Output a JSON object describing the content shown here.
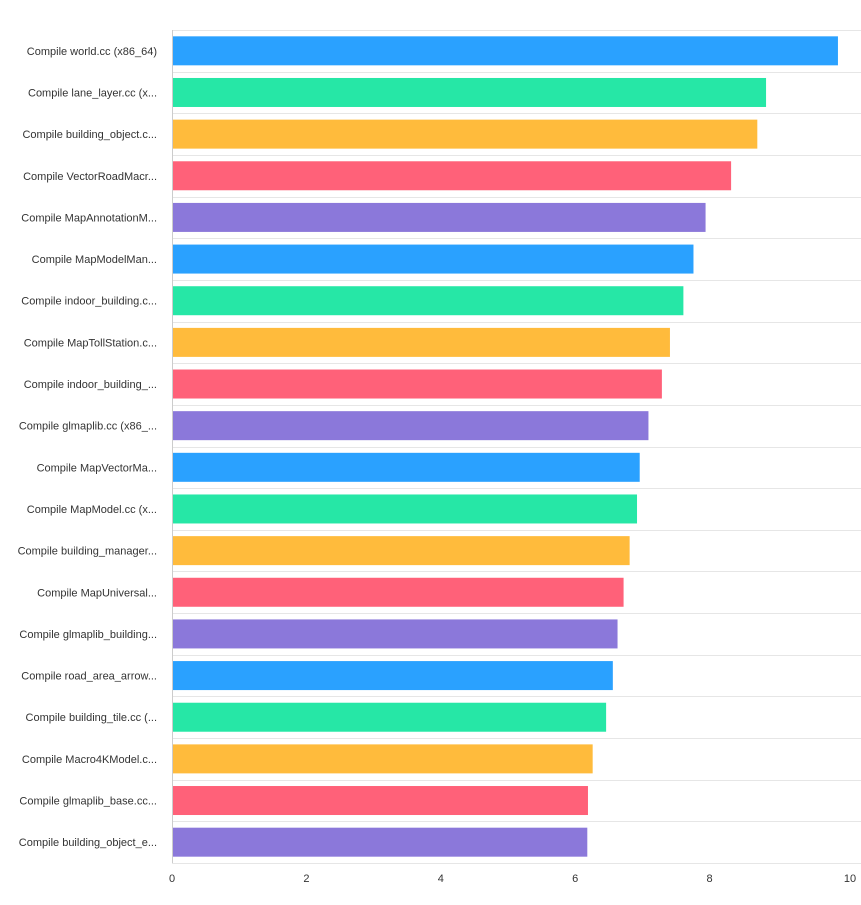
{
  "chart_data": {
    "type": "bar",
    "orientation": "horizontal",
    "title": "",
    "xlabel": "",
    "ylabel": "",
    "xlim": [
      0,
      10
    ],
    "x_ticks": [
      0,
      2,
      4,
      6,
      8,
      10
    ],
    "grid": true,
    "legend": "none",
    "colors": [
      "#2aa1ff",
      "#26e7a6",
      "#ffbb3c",
      "#ff6179",
      "#8b78da"
    ],
    "categories": [
      "Compile world.cc (x86_64)",
      "Compile lane_layer.cc (x...",
      "Compile building_object.c...",
      "Compile VectorRoadMacr...",
      "Compile MapAnnotationM...",
      "Compile MapModelMan...",
      "Compile indoor_building.c...",
      "Compile MapTollStation.c...",
      "Compile indoor_building_...",
      "Compile glmaplib.cc (x86_...",
      "Compile MapVectorMa...",
      "Compile MapModel.cc (x...",
      "Compile building_manager...",
      "Compile MapUniversal...",
      "Compile glmaplib_building...",
      "Compile road_area_arrow...",
      "Compile building_tile.cc (...",
      "Compile Macro4KModel.c...",
      "Compile glmaplib_base.cc...",
      "Compile building_object_e..."
    ],
    "values": [
      9.91,
      8.84,
      8.71,
      8.32,
      7.94,
      7.76,
      7.61,
      7.41,
      7.29,
      7.09,
      6.96,
      6.92,
      6.81,
      6.72,
      6.63,
      6.56,
      6.46,
      6.26,
      6.19,
      6.18
    ]
  }
}
